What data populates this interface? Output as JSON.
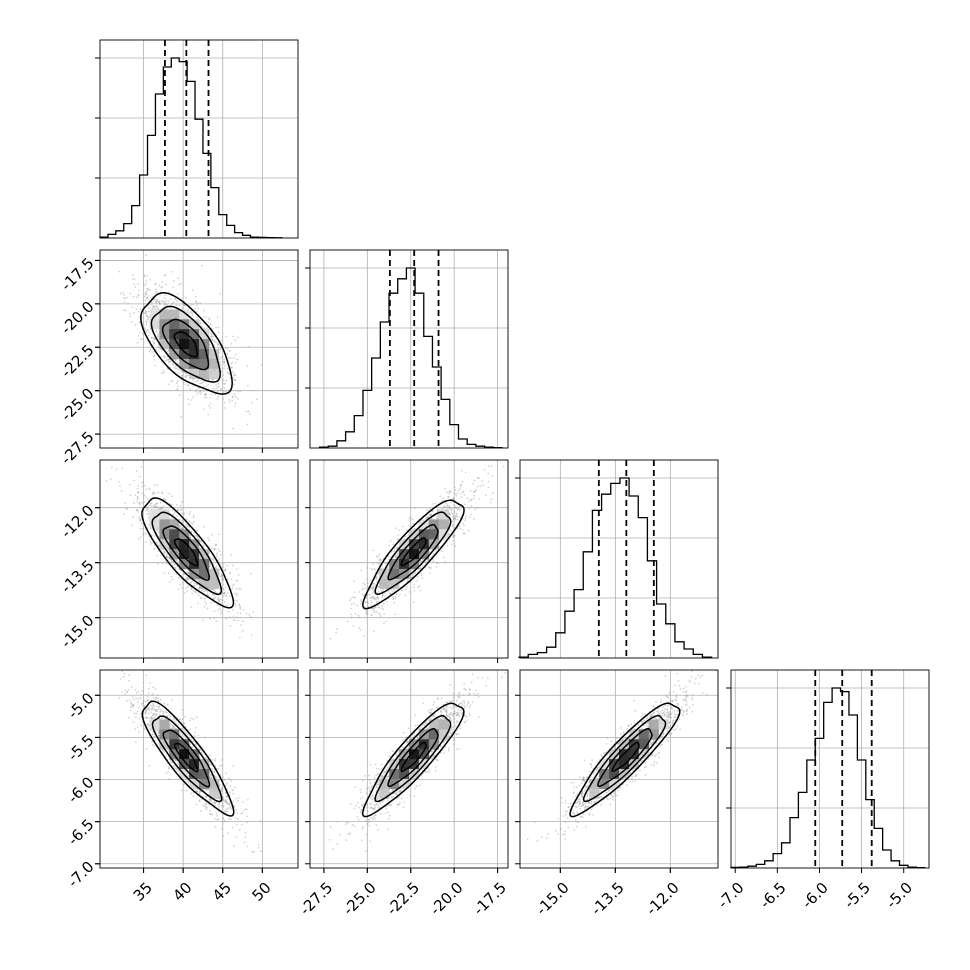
{
  "chart_data": {
    "type": "corner",
    "grid": true,
    "parameters": [
      {
        "ticks": [
          "35",
          "40",
          "45",
          "50"
        ],
        "tick_values": [
          35,
          40,
          45,
          50
        ],
        "range": [
          29.5,
          54.5
        ],
        "quantiles": [
          37.7,
          40.4,
          43.2
        ],
        "hist_x": [
          30,
          31,
          32,
          33,
          34,
          35,
          36,
          37,
          38,
          39,
          40,
          41,
          42,
          43,
          44,
          45,
          46,
          47,
          48,
          49,
          50,
          51,
          52
        ],
        "hist_counts": [
          0.005,
          0.02,
          0.04,
          0.08,
          0.18,
          0.35,
          0.57,
          0.8,
          0.95,
          1.0,
          0.98,
          0.87,
          0.66,
          0.47,
          0.28,
          0.13,
          0.07,
          0.03,
          0.015,
          0.005,
          0.003,
          0.002,
          0.001
        ],
        "hist_ticks": 3
      },
      {
        "ticks": [
          "-27.5",
          "-25.0",
          "-22.5",
          "-20.0",
          "-17.5"
        ],
        "tick_values": [
          -27.5,
          -25.0,
          -22.5,
          -20.0,
          -17.5
        ],
        "range": [
          -28.3,
          -16.9
        ],
        "quantiles": [
          -23.7,
          -22.3,
          -20.9
        ],
        "hist_x": [
          -27.5,
          -27.0,
          -26.5,
          -26.0,
          -25.5,
          -25.0,
          -24.5,
          -24.0,
          -23.5,
          -23.0,
          -22.5,
          -22.0,
          -21.5,
          -21.0,
          -20.5,
          -20.0,
          -19.5,
          -19.0,
          -18.5,
          -18.0,
          -17.5
        ],
        "hist_counts": [
          0.005,
          0.01,
          0.04,
          0.09,
          0.18,
          0.32,
          0.5,
          0.7,
          0.86,
          0.94,
          1.0,
          0.86,
          0.62,
          0.45,
          0.27,
          0.13,
          0.05,
          0.02,
          0.01,
          0.005,
          0.002
        ],
        "hist_ticks": 3
      },
      {
        "ticks": [
          "-15.0",
          "-13.5",
          "-12.0"
        ],
        "tick_values": [
          -15.0,
          -13.5,
          -12.0
        ],
        "range": [
          -16.1,
          -10.7
        ],
        "quantiles": [
          -13.95,
          -13.2,
          -12.45
        ],
        "hist_x": [
          -16.0,
          -15.75,
          -15.5,
          -15.25,
          -15.0,
          -14.75,
          -14.5,
          -14.25,
          -14.0,
          -13.75,
          -13.5,
          -13.25,
          -13.0,
          -12.75,
          -12.5,
          -12.25,
          -12.0,
          -11.75,
          -11.5,
          -11.25,
          -11.0
        ],
        "hist_counts": [
          0.005,
          0.02,
          0.03,
          0.06,
          0.14,
          0.26,
          0.38,
          0.59,
          0.82,
          0.91,
          0.97,
          1.0,
          0.9,
          0.78,
          0.54,
          0.3,
          0.19,
          0.09,
          0.05,
          0.02,
          0.005
        ],
        "hist_ticks": 3
      },
      {
        "ticks": [
          "-7.0",
          "-6.5",
          "-6.0",
          "-5.5",
          "-5.0"
        ],
        "tick_values": [
          -7.0,
          -6.5,
          -6.0,
          -5.5,
          -5.0
        ],
        "range": [
          -7.05,
          -4.7
        ],
        "quantiles": [
          -6.05,
          -5.73,
          -5.38
        ],
        "hist_x": [
          -7.0,
          -6.9,
          -6.8,
          -6.7,
          -6.6,
          -6.5,
          -6.4,
          -6.3,
          -6.2,
          -6.1,
          -6.0,
          -5.9,
          -5.8,
          -5.7,
          -5.6,
          -5.5,
          -5.4,
          -5.3,
          -5.2,
          -5.1,
          -5.0,
          -4.9,
          -4.8
        ],
        "hist_counts": [
          0.003,
          0.005,
          0.01,
          0.02,
          0.04,
          0.08,
          0.14,
          0.28,
          0.42,
          0.6,
          0.72,
          0.92,
          1.0,
          0.98,
          0.85,
          0.6,
          0.38,
          0.22,
          0.1,
          0.04,
          0.015,
          0.005,
          0.002
        ],
        "hist_ticks": 3
      }
    ],
    "pairs": [
      {
        "row": 1,
        "col": 0,
        "mean": [
          40.4,
          -22.3
        ],
        "cov": [
          [
            8.0,
            -2.5
          ],
          [
            -2.5,
            2.0
          ]
        ]
      },
      {
        "row": 2,
        "col": 0,
        "mean": [
          40.4,
          -13.2
        ],
        "cov": [
          [
            8.0,
            -1.7
          ],
          [
            -1.7,
            0.53
          ]
        ]
      },
      {
        "row": 2,
        "col": 1,
        "mean": [
          -22.3,
          -13.2
        ],
        "cov": [
          [
            2.0,
            0.9
          ],
          [
            0.9,
            0.53
          ]
        ]
      },
      {
        "row": 3,
        "col": 0,
        "mean": [
          40.4,
          -5.73
        ],
        "cov": [
          [
            8.0,
            -0.82
          ],
          [
            -0.82,
            0.11
          ]
        ]
      },
      {
        "row": 3,
        "col": 1,
        "mean": [
          -22.3,
          -5.73
        ],
        "cov": [
          [
            2.0,
            0.42
          ],
          [
            0.42,
            0.11
          ]
        ]
      },
      {
        "row": 3,
        "col": 2,
        "mean": [
          -13.2,
          -5.73
        ],
        "cov": [
          [
            0.53,
            0.22
          ],
          [
            0.22,
            0.11
          ]
        ]
      }
    ]
  }
}
